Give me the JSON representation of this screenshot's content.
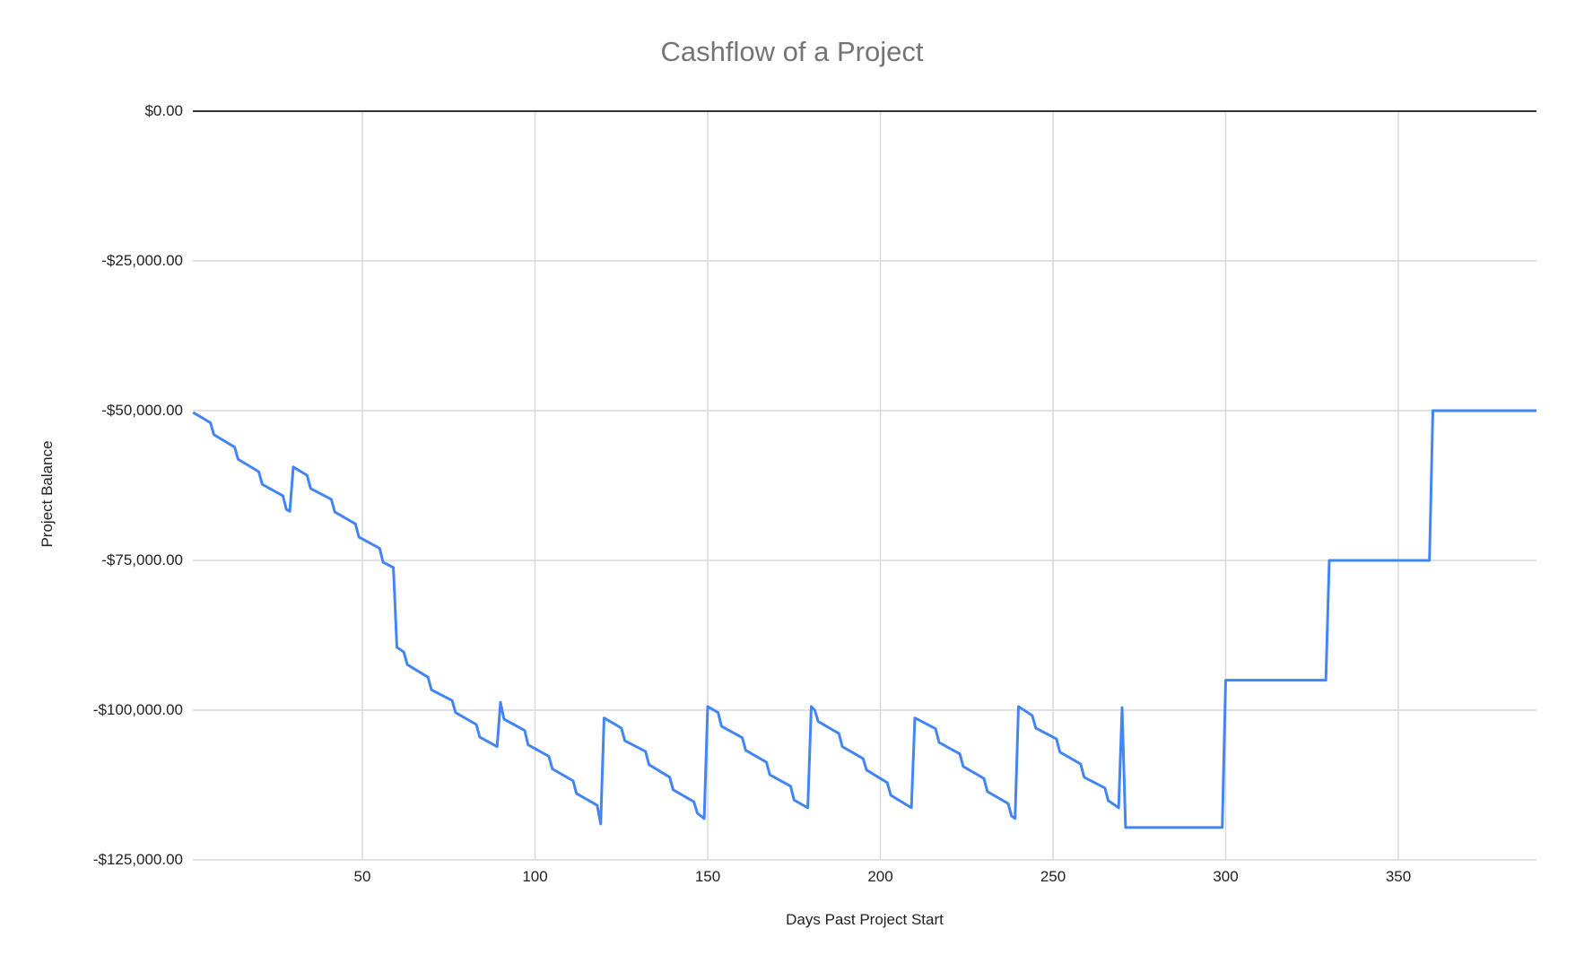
{
  "chart_data": {
    "type": "line",
    "title": "Cashflow of a Project",
    "xlabel": "Days Past Project Start",
    "ylabel": "Project Balance",
    "xlim": [
      1,
      390
    ],
    "ylim": [
      -125000,
      0
    ],
    "x_ticks": [
      50,
      100,
      150,
      200,
      250,
      300,
      350
    ],
    "x_tick_labels": [
      "50",
      "100",
      "150",
      "200",
      "250",
      "300",
      "350"
    ],
    "y_ticks": [
      0,
      -25000,
      -50000,
      -75000,
      -100000,
      -125000
    ],
    "y_tick_labels": [
      "$0.00",
      "-$25,000.00",
      "-$50,000.00",
      "-$75,000.00",
      "-$100,000.00",
      "-$125,000.00"
    ],
    "grid": true,
    "legend": "none",
    "series": [
      {
        "name": "Project Balance",
        "color": "#4285F4",
        "x": [
          1,
          6,
          7,
          13,
          14,
          20,
          21,
          27,
          28,
          29,
          30,
          34,
          35,
          41,
          42,
          48,
          49,
          55,
          56,
          59,
          60,
          62,
          63,
          69,
          70,
          76,
          77,
          83,
          84,
          89,
          90,
          91,
          97,
          98,
          104,
          105,
          111,
          112,
          118,
          119,
          120,
          125,
          126,
          132,
          133,
          139,
          140,
          146,
          147,
          149,
          150,
          153,
          154,
          160,
          161,
          167,
          168,
          174,
          175,
          179,
          180,
          181,
          182,
          188,
          189,
          195,
          196,
          202,
          203,
          209,
          210,
          216,
          217,
          223,
          224,
          230,
          231,
          237,
          238,
          239,
          240,
          244,
          245,
          251,
          252,
          258,
          259,
          265,
          266,
          269,
          270,
          271,
          299,
          300,
          329,
          330,
          359,
          360,
          390
        ],
        "values": [
          -50300,
          -52000,
          -54000,
          -56100,
          -58100,
          -60200,
          -62300,
          -64200,
          -66500,
          -66800,
          -59400,
          -60800,
          -63000,
          -64800,
          -66900,
          -68900,
          -71100,
          -73000,
          -75300,
          -76200,
          -89500,
          -90300,
          -92400,
          -94500,
          -96600,
          -98400,
          -100400,
          -102400,
          -104500,
          -106100,
          -98700,
          -101500,
          -103400,
          -105800,
          -107700,
          -109800,
          -111800,
          -113900,
          -115900,
          -119000,
          -101300,
          -103000,
          -105100,
          -106900,
          -109100,
          -111200,
          -113300,
          -115300,
          -117200,
          -118100,
          -99400,
          -100400,
          -102700,
          -104600,
          -106700,
          -108700,
          -110800,
          -112700,
          -115000,
          -116300,
          -99400,
          -100000,
          -101900,
          -103900,
          -106100,
          -108100,
          -110000,
          -112100,
          -114200,
          -116300,
          -101300,
          -103100,
          -105400,
          -107300,
          -109400,
          -111400,
          -113600,
          -115600,
          -117700,
          -118100,
          -99400,
          -100900,
          -103000,
          -104800,
          -107000,
          -109000,
          -111200,
          -113000,
          -115100,
          -116300,
          -99600,
          -119600,
          -119600,
          -95000,
          -95000,
          -75000,
          -75000,
          -50000,
          -50000
        ]
      }
    ]
  },
  "colors": {
    "line": "#4285F4",
    "grid": "#d9d9d9",
    "zero_line": "#333333",
    "title": "#757575",
    "text": "#222222"
  }
}
